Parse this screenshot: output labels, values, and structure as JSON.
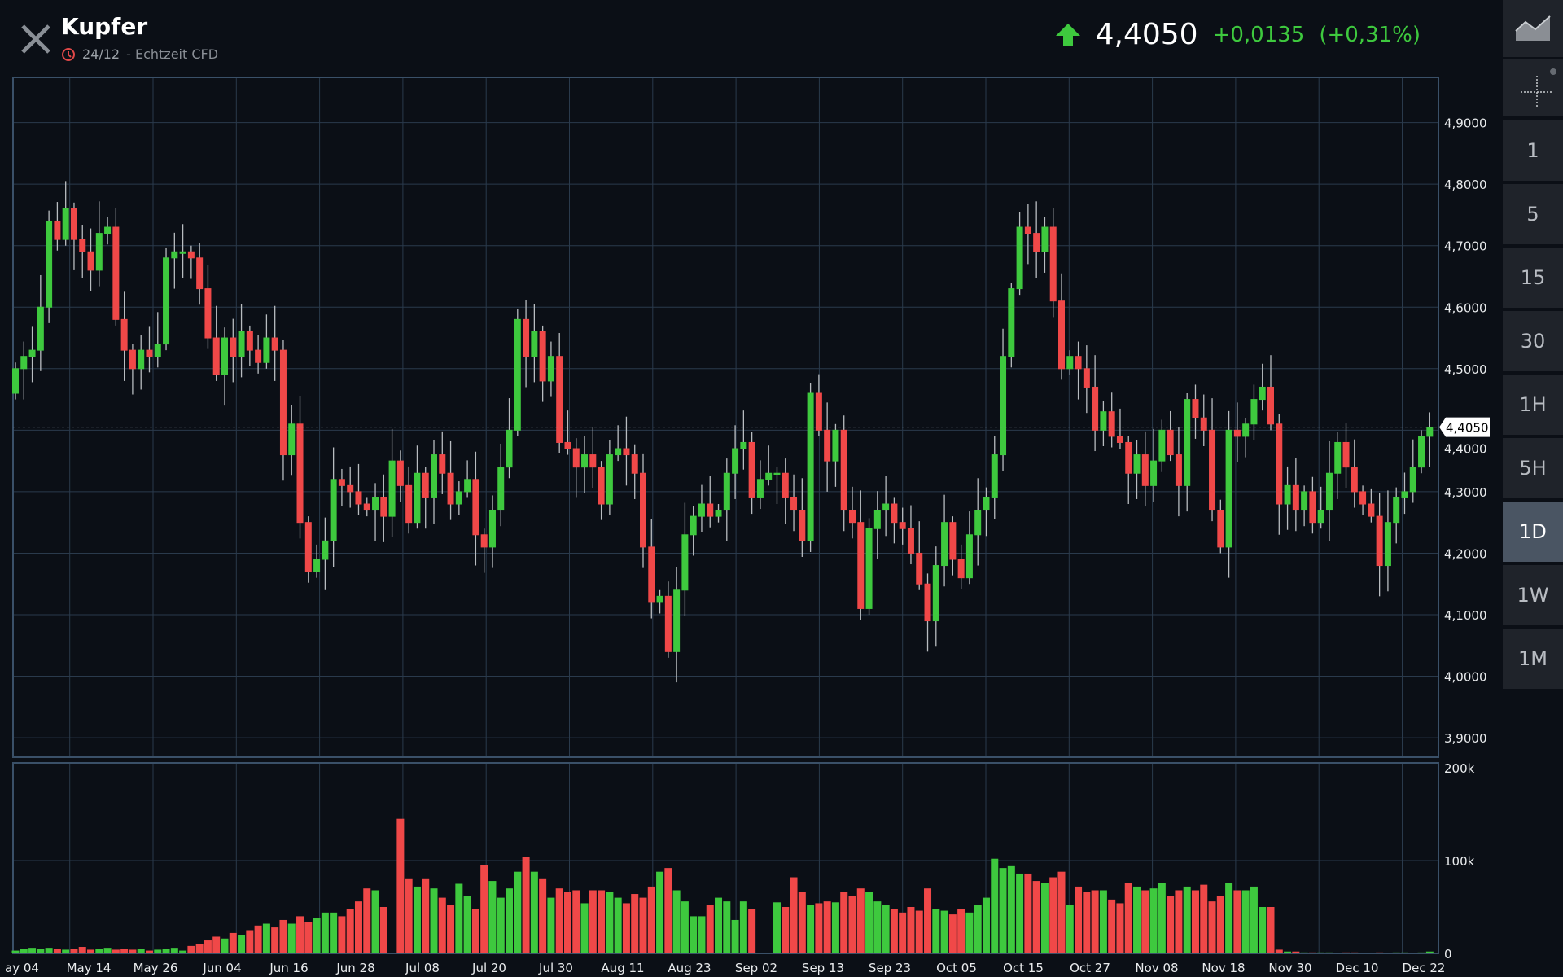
{
  "header": {
    "title": "Kupfer",
    "date": "24/12",
    "subtitle": "- Echtzeit CFD",
    "price": "4,4050",
    "change": "+0,0135",
    "change_pct": "(+0,31%)",
    "trend": "up",
    "icons": {
      "close": "close-icon",
      "clock": "clock-icon",
      "arrow": "arrow-up-icon"
    }
  },
  "colors": {
    "up": "#3ec93e",
    "down": "#f04848",
    "grid": "#2a3a4c",
    "bg": "#0b0f16",
    "accent_clock": "#e04848"
  },
  "sidebar": {
    "tools": [
      {
        "name": "chart-type-icon"
      },
      {
        "name": "crosshair-icon"
      }
    ],
    "intervals": [
      "1",
      "5",
      "15",
      "30",
      "1H",
      "5H",
      "1D",
      "1W",
      "1M"
    ],
    "selected": "1D"
  },
  "chart_data": {
    "type": "candlestick",
    "title": "Kupfer",
    "price_axis": {
      "min": 3.85,
      "max": 4.97,
      "ticks": [
        "4,9000",
        "4,8000",
        "4,7000",
        "4,6000",
        "4,5000",
        "4,4000",
        "4,3000",
        "4,2000",
        "4,1000",
        "4,0000",
        "3,9000"
      ],
      "tick_values": [
        4.9,
        4.8,
        4.7,
        4.6,
        4.5,
        4.4,
        4.3,
        4.2,
        4.1,
        4.0,
        3.9
      ]
    },
    "current_price_label": "4,4050",
    "current_price": 4.405,
    "volume_axis": {
      "max": 200,
      "ticks": [
        "200k",
        "100k",
        "0"
      ],
      "tick_values": [
        200,
        100,
        0
      ]
    },
    "x_labels": [
      "ay 04",
      "May 14",
      "May 26",
      "Jun 04",
      "Jun 16",
      "Jun 28",
      "Jul 08",
      "Jul 20",
      "Jul 30",
      "Aug 11",
      "Aug 23",
      "Sep 02",
      "Sep 13",
      "Sep 23",
      "Oct 05",
      "Oct 15",
      "Oct 27",
      "Nov 08",
      "Nov 18",
      "Nov 30",
      "Dec 10",
      "Dec 22"
    ],
    "first_open": 4.46,
    "close": [
      4.5,
      4.52,
      4.53,
      4.6,
      4.74,
      4.71,
      4.76,
      4.71,
      4.69,
      4.66,
      4.72,
      4.73,
      4.58,
      4.53,
      4.5,
      4.53,
      4.52,
      4.54,
      4.68,
      4.69,
      4.69,
      4.68,
      4.63,
      4.55,
      4.49,
      4.55,
      4.52,
      4.56,
      4.53,
      4.51,
      4.55,
      4.53,
      4.36,
      4.41,
      4.25,
      4.17,
      4.19,
      4.22,
      4.32,
      4.31,
      4.3,
      4.28,
      4.27,
      4.29,
      4.26,
      4.35,
      4.31,
      4.25,
      4.33,
      4.29,
      4.36,
      4.33,
      4.28,
      4.3,
      4.32,
      4.23,
      4.21,
      4.27,
      4.34,
      4.4,
      4.58,
      4.52,
      4.56,
      4.48,
      4.52,
      4.38,
      4.37,
      4.34,
      4.36,
      4.34,
      4.28,
      4.36,
      4.37,
      4.36,
      4.33,
      4.21,
      4.12,
      4.13,
      4.04,
      4.14,
      4.23,
      4.26,
      4.28,
      4.26,
      4.27,
      4.33,
      4.37,
      4.38,
      4.29,
      4.32,
      4.33,
      4.33,
      4.29,
      4.27,
      4.22,
      4.46,
      4.4,
      4.35,
      4.4,
      4.27,
      4.25,
      4.11,
      4.24,
      4.27,
      4.28,
      4.25,
      4.24,
      4.2,
      4.15,
      4.09,
      4.18,
      4.25,
      4.19,
      4.16,
      4.23,
      4.27,
      4.29,
      4.36,
      4.52,
      4.63,
      4.73,
      4.72,
      4.69,
      4.73,
      4.61,
      4.5,
      4.52,
      4.5,
      4.47,
      4.4,
      4.43,
      4.39,
      4.38,
      4.33,
      4.36,
      4.31,
      4.35,
      4.4,
      4.36,
      4.31,
      4.45,
      4.42,
      4.4,
      4.27,
      4.21,
      4.4,
      4.39,
      4.41,
      4.45,
      4.47,
      4.41,
      4.28,
      4.31,
      4.27,
      4.3,
      4.25,
      4.27,
      4.33,
      4.38,
      4.34,
      4.3,
      4.28,
      4.26,
      4.18,
      4.25,
      4.29,
      4.3,
      4.34,
      4.39,
      4.405
    ],
    "volume_k": [
      3,
      5,
      6,
      5,
      6,
      5,
      4,
      5,
      7,
      4,
      5,
      6,
      4,
      5,
      4,
      5,
      3,
      4,
      5,
      6,
      3,
      8,
      10,
      14,
      18,
      16,
      22,
      20,
      25,
      30,
      32,
      28,
      36,
      32,
      40,
      34,
      38,
      44,
      44,
      40,
      48,
      56,
      70,
      68,
      50,
      0,
      145,
      80,
      72,
      80,
      70,
      60,
      52,
      75,
      62,
      48,
      95,
      78,
      60,
      70,
      88,
      104,
      88,
      80,
      60,
      70,
      66,
      68,
      54,
      68,
      68,
      66,
      60,
      54,
      64,
      60,
      72,
      88,
      92,
      68,
      56,
      40,
      40,
      52,
      60,
      56,
      36,
      56,
      48,
      0,
      0,
      55,
      50,
      82,
      66,
      52,
      54,
      56,
      55,
      66,
      62,
      70,
      66,
      56,
      52,
      48,
      44,
      50,
      46,
      70,
      48,
      46,
      42,
      48,
      44,
      52,
      60,
      102,
      92,
      94,
      86,
      86,
      78,
      76,
      82,
      88,
      52,
      72,
      66,
      68,
      68,
      58,
      54,
      76,
      72,
      68,
      70,
      76,
      62,
      68,
      72,
      68,
      74,
      56,
      62,
      76,
      68,
      68,
      72,
      50,
      50,
      4,
      2,
      2,
      1,
      1,
      1,
      1,
      0,
      1,
      1,
      0,
      0,
      1,
      0,
      1,
      1,
      0,
      1,
      2
    ]
  }
}
